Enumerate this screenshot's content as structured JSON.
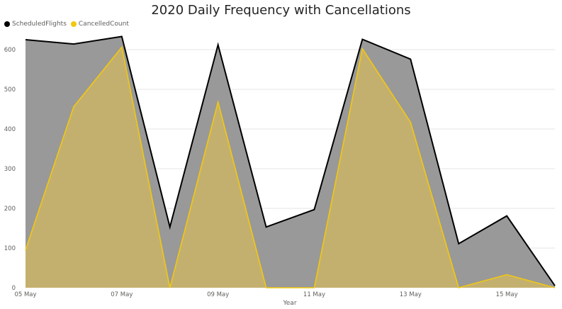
{
  "chart_data": {
    "type": "area",
    "title": "2020 Daily Frequency with Cancellations",
    "xlabel": "Year",
    "ylabel": "",
    "x": [
      "05 May",
      "06 May",
      "07 May",
      "08 May",
      "09 May",
      "10 May",
      "11 May",
      "12 May",
      "13 May",
      "14 May",
      "15 May",
      "16 May"
    ],
    "x_tick_labels": [
      "05 May",
      "07 May",
      "09 May",
      "11 May",
      "13 May",
      "15 May"
    ],
    "ylim": [
      0,
      650
    ],
    "y_ticks": [
      0,
      100,
      200,
      300,
      400,
      500,
      600
    ],
    "grid": true,
    "legend_position": "top-left",
    "series": [
      {
        "name": "ScheduledFlights",
        "color": "#000000",
        "fill": "#999999",
        "values": [
          625,
          614,
          633,
          153,
          612,
          153,
          197,
          626,
          576,
          111,
          181,
          5
        ]
      },
      {
        "name": "CancelledCount",
        "color": "#F2C811",
        "fill": "#C4B06E",
        "values": [
          95,
          456,
          606,
          0,
          468,
          0,
          0,
          602,
          417,
          0,
          33,
          0
        ]
      }
    ]
  }
}
